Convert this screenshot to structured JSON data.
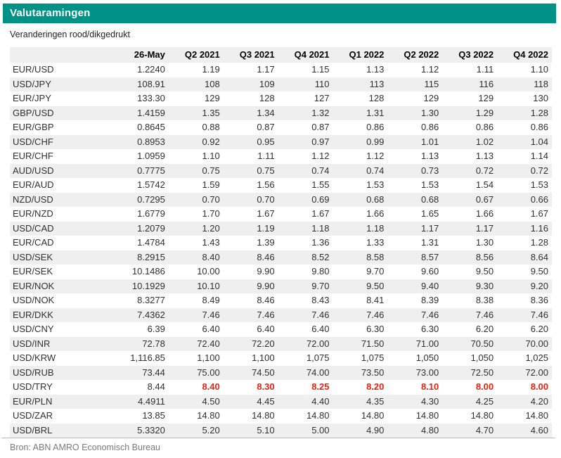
{
  "header": {
    "title": "Valutaramingen"
  },
  "subtitle": "Veranderingen rood/dikgedrukt",
  "colors": {
    "accent_teal": "#009286",
    "change_red": "#e42313",
    "stripe_gray": "#efefef"
  },
  "table": {
    "columns": [
      "",
      "26-May",
      "Q2 2021",
      "Q3 2021",
      "Q4 2021",
      "Q1 2022",
      "Q2 2022",
      "Q3 2022",
      "Q4 2022"
    ],
    "rows": [
      {
        "pair": "EUR/USD",
        "values": [
          "1.2240",
          "1.19",
          "1.17",
          "1.15",
          "1.13",
          "1.12",
          "1.11",
          "1.10"
        ],
        "highlight": false
      },
      {
        "pair": "USD/JPY",
        "values": [
          "108.91",
          "108",
          "109",
          "110",
          "113",
          "115",
          "116",
          "118"
        ],
        "highlight": false
      },
      {
        "pair": "EUR/JPY",
        "values": [
          "133.30",
          "129",
          "128",
          "127",
          "128",
          "129",
          "129",
          "130"
        ],
        "highlight": false
      },
      {
        "pair": "GBP/USD",
        "values": [
          "1.4159",
          "1.35",
          "1.34",
          "1.32",
          "1.31",
          "1.30",
          "1.29",
          "1.28"
        ],
        "highlight": false
      },
      {
        "pair": "EUR/GBP",
        "values": [
          "0.8645",
          "0.88",
          "0.87",
          "0.87",
          "0.86",
          "0.86",
          "0.86",
          "0.86"
        ],
        "highlight": false
      },
      {
        "pair": "USD/CHF",
        "values": [
          "0.8953",
          "0.92",
          "0.95",
          "0.97",
          "0.99",
          "1.01",
          "1.02",
          "1.04"
        ],
        "highlight": false
      },
      {
        "pair": "EUR/CHF",
        "values": [
          "1.0959",
          "1.10",
          "1.11",
          "1.12",
          "1.12",
          "1.13",
          "1.13",
          "1.14"
        ],
        "highlight": false
      },
      {
        "pair": "AUD/USD",
        "values": [
          "0.7775",
          "0.75",
          "0.75",
          "0.74",
          "0.74",
          "0.73",
          "0.72",
          "0.72"
        ],
        "highlight": false
      },
      {
        "pair": "EUR/AUD",
        "values": [
          "1.5742",
          "1.59",
          "1.56",
          "1.55",
          "1.53",
          "1.53",
          "1.54",
          "1.53"
        ],
        "highlight": false
      },
      {
        "pair": "NZD/USD",
        "values": [
          "0.7295",
          "0.70",
          "0.70",
          "0.69",
          "0.68",
          "0.68",
          "0.67",
          "0.66"
        ],
        "highlight": false
      },
      {
        "pair": "EUR/NZD",
        "values": [
          "1.6779",
          "1.70",
          "1.67",
          "1.67",
          "1.66",
          "1.65",
          "1.66",
          "1.67"
        ],
        "highlight": false
      },
      {
        "pair": "USD/CAD",
        "values": [
          "1.2079",
          "1.20",
          "1.19",
          "1.18",
          "1.18",
          "1.17",
          "1.17",
          "1.16"
        ],
        "highlight": false
      },
      {
        "pair": "EUR/CAD",
        "values": [
          "1.4784",
          "1.43",
          "1.39",
          "1.36",
          "1.33",
          "1.31",
          "1.30",
          "1.28"
        ],
        "highlight": false
      },
      {
        "pair": "USD/SEK",
        "values": [
          "8.2915",
          "8.40",
          "8.46",
          "8.52",
          "8.58",
          "8.57",
          "8.56",
          "8.64"
        ],
        "highlight": false
      },
      {
        "pair": "EUR/SEK",
        "values": [
          "10.1486",
          "10.00",
          "9.90",
          "9.80",
          "9.70",
          "9.60",
          "9.50",
          "9.50"
        ],
        "highlight": false
      },
      {
        "pair": "EUR/NOK",
        "values": [
          "10.1929",
          "10.10",
          "9.90",
          "9.70",
          "9.50",
          "9.40",
          "9.30",
          "9.20"
        ],
        "highlight": false
      },
      {
        "pair": "USD/NOK",
        "values": [
          "8.3277",
          "8.49",
          "8.46",
          "8.43",
          "8.41",
          "8.39",
          "8.38",
          "8.36"
        ],
        "highlight": false
      },
      {
        "pair": "EUR/DKK",
        "values": [
          "7.4362",
          "7.46",
          "7.46",
          "7.46",
          "7.46",
          "7.46",
          "7.46",
          "7.46"
        ],
        "highlight": false
      },
      {
        "pair": "USD/CNY",
        "values": [
          "6.39",
          "6.40",
          "6.40",
          "6.40",
          "6.30",
          "6.30",
          "6.20",
          "6.20"
        ],
        "highlight": false
      },
      {
        "pair": "USD/INR",
        "values": [
          "72.78",
          "72.40",
          "72.20",
          "72.00",
          "71.50",
          "71.00",
          "70.50",
          "70.00"
        ],
        "highlight": false
      },
      {
        "pair": "USD/KRW",
        "values": [
          "1,116.85",
          "1,100",
          "1,100",
          "1,075",
          "1,075",
          "1,050",
          "1,050",
          "1,025"
        ],
        "highlight": false
      },
      {
        "pair": "USD/RUB",
        "values": [
          "73.44",
          "75.00",
          "74.50",
          "74.00",
          "73.50",
          "73.00",
          "72.50",
          "72.00"
        ],
        "highlight": false
      },
      {
        "pair": "USD/TRY",
        "values": [
          "8.44",
          "8.40",
          "8.30",
          "8.25",
          "8.20",
          "8.10",
          "8.00",
          "8.00"
        ],
        "highlight": true
      },
      {
        "pair": "EUR/PLN",
        "values": [
          "4.4911",
          "4.50",
          "4.45",
          "4.40",
          "4.35",
          "4.30",
          "4.25",
          "4.20"
        ],
        "highlight": false
      },
      {
        "pair": "USD/ZAR",
        "values": [
          "13.85",
          "14.80",
          "14.80",
          "14.80",
          "14.80",
          "14.80",
          "14.80",
          "14.80"
        ],
        "highlight": false
      },
      {
        "pair": "USD/BRL",
        "values": [
          "5.3320",
          "5.20",
          "5.10",
          "5.00",
          "4.90",
          "4.80",
          "4.70",
          "4.60"
        ],
        "highlight": false
      }
    ]
  },
  "footer": {
    "source": "Bron: ABN AMRO Economisch Bureau"
  }
}
